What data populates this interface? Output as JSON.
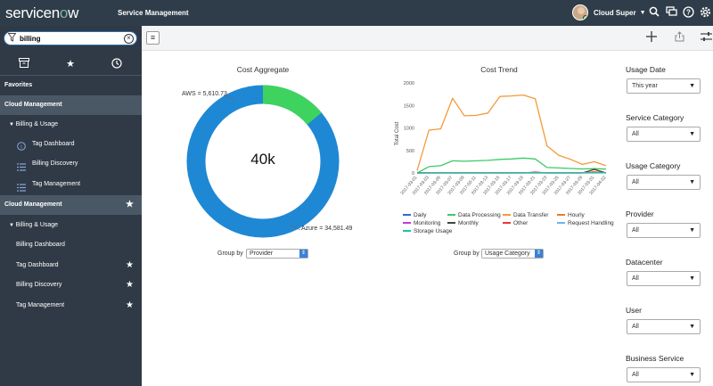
{
  "header": {
    "logo_text_a": "service",
    "logo_text_o": "n",
    "logo_text_b": "w",
    "logo_o": "o",
    "app_name": "Service Management",
    "user_name": "Cloud Super",
    "icons": [
      "search-icon",
      "chat-icon",
      "help-icon",
      "gear-icon"
    ]
  },
  "sidebar": {
    "filter_value": "billing",
    "tabs": [
      "archive-icon",
      "star-icon",
      "clock-icon"
    ],
    "rows": [
      {
        "label": "Favorites",
        "kind": "head"
      },
      {
        "label": "Cloud Management",
        "kind": "sec"
      },
      {
        "label": "Billing & Usage",
        "kind": "group"
      },
      {
        "label": "Tag Dashboard",
        "kind": "item",
        "icon": "info-icon"
      },
      {
        "label": "Billing Discovery",
        "kind": "item",
        "icon": "list-icon"
      },
      {
        "label": "Tag Management",
        "kind": "item",
        "icon": "list-icon"
      },
      {
        "label": "Cloud Management",
        "kind": "sec",
        "star": true
      },
      {
        "label": "Billing & Usage",
        "kind": "group"
      },
      {
        "label": "Billing Dashboard",
        "kind": "sub"
      },
      {
        "label": "Tag Dashboard",
        "kind": "sub",
        "star": true
      },
      {
        "label": "Billing Discovery",
        "kind": "sub",
        "star": true
      },
      {
        "label": "Tag Management",
        "kind": "sub",
        "star": true
      }
    ]
  },
  "donut": {
    "title": "Cost Aggregate",
    "center_label": "40k",
    "aws_label": "AWS = 5,610.73",
    "azure_label": "Azure = 34,581.49",
    "group_by_label": "Group by",
    "group_by_value": "Provider",
    "colors": {
      "aws": "#3ed35e",
      "azure": "#1f88d4"
    }
  },
  "trend": {
    "title": "Cost Trend",
    "group_by_label": "Group by",
    "group_by_value": "Usage Category"
  },
  "chart_data": {
    "type": "line",
    "title": "Cost Trend",
    "ylabel": "Total Cost",
    "ylim": [
      0,
      2000
    ],
    "yticks": [
      "0",
      "500",
      "1000",
      "1500",
      "2000"
    ],
    "x": [
      "2017-03-01",
      "2017-03-03",
      "2017-03-05",
      "2017-03-07",
      "2017-03-09",
      "2017-03-11",
      "2017-03-13",
      "2017-03-15",
      "2017-03-17",
      "2017-03-19",
      "2017-03-21",
      "2017-03-23",
      "2017-03-25",
      "2017-03-27",
      "2017-03-29",
      "2017-03-31",
      "2017-04-02"
    ],
    "series": [
      {
        "name": "Data Transfer",
        "color": "#f39a37",
        "values": [
          50,
          950,
          980,
          1660,
          1270,
          1280,
          1330,
          1700,
          1710,
          1730,
          1650,
          600,
          390,
          300,
          190,
          250,
          160
        ]
      },
      {
        "name": "Data Processing",
        "color": "#3ec967",
        "values": [
          0,
          140,
          160,
          270,
          260,
          270,
          280,
          300,
          310,
          330,
          310,
          120,
          110,
          100,
          90,
          95,
          85
        ]
      },
      {
        "name": "Daily",
        "color": "#2d6ad2",
        "values": [
          0,
          5,
          5,
          5,
          5,
          5,
          5,
          5,
          5,
          5,
          5,
          5,
          5,
          5,
          5,
          5,
          5
        ]
      },
      {
        "name": "Hourly",
        "color": "#f07c21",
        "values": [
          0,
          0,
          0,
          0,
          0,
          0,
          0,
          0,
          0,
          0,
          0,
          0,
          0,
          0,
          0,
          30,
          0
        ]
      },
      {
        "name": "Monitoring",
        "color": "#c83ad2",
        "values": [
          0,
          2,
          2,
          2,
          2,
          2,
          2,
          2,
          2,
          2,
          2,
          2,
          2,
          2,
          2,
          2,
          2
        ]
      },
      {
        "name": "Monthly",
        "color": "#444444",
        "values": [
          0,
          0,
          0,
          0,
          0,
          0,
          0,
          0,
          0,
          0,
          0,
          0,
          0,
          0,
          0,
          80,
          0
        ]
      },
      {
        "name": "Other",
        "color": "#e23a3a",
        "values": [
          0,
          0,
          0,
          0,
          0,
          0,
          0,
          0,
          0,
          0,
          20,
          0,
          0,
          0,
          0,
          0,
          0
        ]
      },
      {
        "name": "Request Handling",
        "color": "#6ab4f0",
        "values": [
          0,
          3,
          3,
          3,
          3,
          3,
          3,
          3,
          3,
          3,
          3,
          3,
          3,
          3,
          3,
          3,
          3
        ]
      },
      {
        "name": "Storage Usage",
        "color": "#1ec2a8",
        "values": [
          0,
          8,
          8,
          8,
          8,
          8,
          8,
          8,
          8,
          8,
          8,
          8,
          8,
          8,
          8,
          8,
          8
        ]
      }
    ]
  },
  "filters": [
    {
      "label": "Usage Date",
      "value": "This year"
    },
    {
      "label": "Service Category",
      "value": "All"
    },
    {
      "label": "Usage Category",
      "value": "All"
    },
    {
      "label": "Provider",
      "value": "All"
    },
    {
      "label": "Datacenter",
      "value": "All"
    },
    {
      "label": "User",
      "value": "All"
    },
    {
      "label": "Business Service",
      "value": "All"
    }
  ]
}
